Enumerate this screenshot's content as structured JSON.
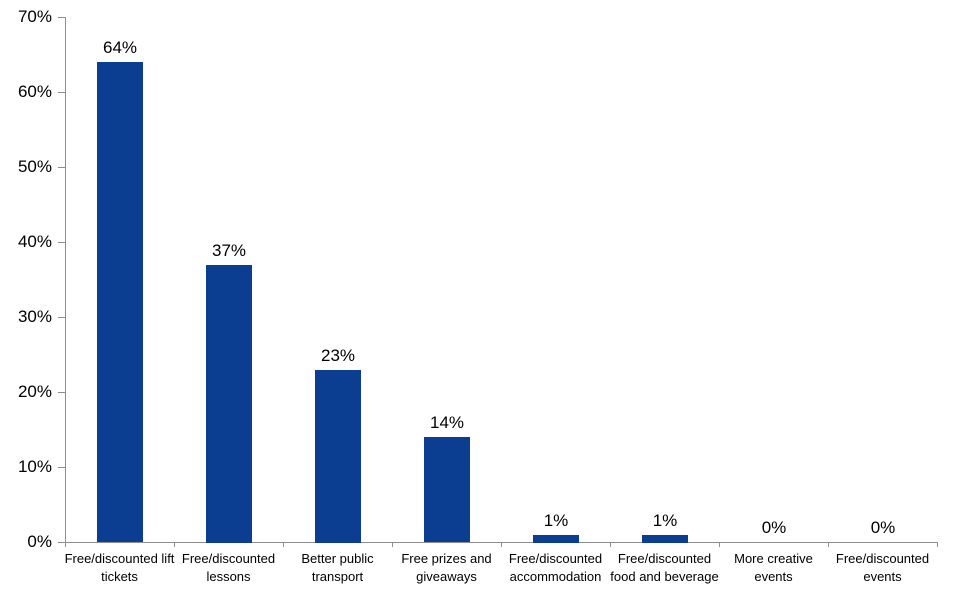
{
  "chart_data": {
    "type": "bar",
    "title": "",
    "xlabel": "",
    "ylabel": "",
    "categories": [
      "Free/discounted lift\ntickets",
      "Free/discounted\nlessons",
      "Better public\ntransport",
      "Free prizes and\ngiveaways",
      "Free/discounted\naccommodation",
      "Free/discounted\nfood and beverage",
      "More creative\nevents",
      "Free/discounted\nevents"
    ],
    "values": [
      64,
      37,
      23,
      14,
      1,
      1,
      0,
      0
    ],
    "data_labels": [
      "64%",
      "37%",
      "23%",
      "14%",
      "1%",
      "1%",
      "0%",
      "0%"
    ],
    "y_ticks": [
      "0%",
      "10%",
      "20%",
      "30%",
      "40%",
      "50%",
      "60%",
      "70%"
    ],
    "y_tick_values": [
      0,
      10,
      20,
      30,
      40,
      50,
      60,
      70
    ],
    "ylim": [
      0,
      70
    ],
    "grid": false,
    "legend": false,
    "colors": {
      "bar": "#0b3d91",
      "axis": "#8e8e8e",
      "text": "#000000",
      "background": "#ffffff"
    }
  }
}
